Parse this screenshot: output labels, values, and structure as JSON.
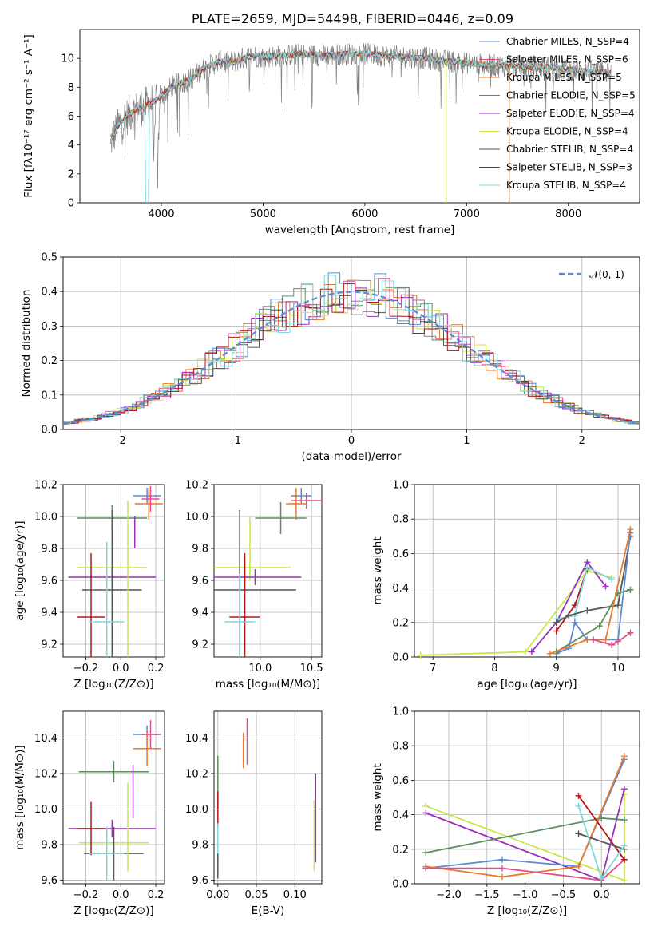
{
  "chart_data": [
    {
      "id": "spectrum",
      "type": "line",
      "title": "PLATE=2659, MJD=54498, FIBERID=0446, z=0.09",
      "xlabel": "wavelength [Angstrom, rest frame]",
      "ylabel": "Flux [fλ10⁻¹⁷ erg cm⁻² s⁻¹ A⁻¹]",
      "xlim": [
        3200,
        8700
      ],
      "ylim": [
        0,
        12
      ],
      "xticks": [
        4000,
        5000,
        6000,
        7000,
        8000
      ],
      "yticks": [
        0,
        2,
        4,
        6,
        8,
        10
      ],
      "legend": "right",
      "series": [
        {
          "name": "Chabrier MILES, N_SSP=4",
          "color": "#5b8bd6"
        },
        {
          "name": "Salpeter MILES, N_SSP=6",
          "color": "#e04e8c"
        },
        {
          "name": "Kroupa MILES, N_SSP=5",
          "color": "#e87a2a"
        },
        {
          "name": "Chabrier ELODIE, N_SSP=5",
          "color": "#5a8f60"
        },
        {
          "name": "Salpeter ELODIE, N_SSP=4",
          "color": "#9a2fb8"
        },
        {
          "name": "Kroupa ELODIE, N_SSP=4",
          "color": "#c9e64a"
        },
        {
          "name": "Chabrier STELIB, N_SSP=4",
          "color": "#555555"
        },
        {
          "name": "Salpeter STELIB, N_SSP=3",
          "color": "#b01818"
        },
        {
          "name": "Kroupa STELIB, N_SSP=4",
          "color": "#7ed8dc"
        }
      ],
      "continuum": {
        "x": [
          3500,
          3600,
          3700,
          3800,
          3900,
          4000,
          4100,
          4200,
          4300,
          4400,
          4500,
          4600,
          4700,
          4800,
          4900,
          5000,
          5200,
          5400,
          5600,
          5800,
          6000,
          6200,
          6400,
          6600,
          6800,
          7000,
          7200,
          7400,
          7600,
          7800,
          8000,
          8200,
          8400
        ],
        "y": [
          4.2,
          5.6,
          6.2,
          6.6,
          6.9,
          7.4,
          8.0,
          8.3,
          8.6,
          9.2,
          9.6,
          9.8,
          9.7,
          10.0,
          10.2,
          10.1,
          10.2,
          10.3,
          10.2,
          10.3,
          10.3,
          10.2,
          10.1,
          10.0,
          9.8,
          9.7,
          9.5,
          9.5,
          9.4,
          9.4,
          9.2,
          9.1,
          9.0
        ]
      }
    },
    {
      "id": "residuals",
      "type": "line",
      "xlabel": "(data-model)/error",
      "ylabel": "Normed distribution",
      "xlim": [
        -2.5,
        2.5
      ],
      "ylim": [
        0,
        0.5
      ],
      "xticks": [
        -2,
        -1,
        0,
        1,
        2
      ],
      "yticks": [
        0.0,
        0.1,
        0.2,
        0.3,
        0.4,
        0.5
      ],
      "reference_curve": {
        "name": "𝒩(0, 1)",
        "color": "#5b8bd6",
        "style": "dashed"
      },
      "legend": "top-right"
    },
    {
      "id": "age_vs_Z",
      "type": "scatter",
      "xlabel": "Z [log₁₀(Z/Z⊙)]",
      "ylabel": "age  [log₁₀(age/yr)]",
      "xlim": [
        -0.33,
        0.25
      ],
      "ylim": [
        9.12,
        10.2
      ],
      "xticks": [
        -0.2,
        0.0,
        0.2
      ],
      "yticks": [
        9.2,
        9.4,
        9.6,
        9.8,
        10.0,
        10.2
      ],
      "points": [
        {
          "x": 0.15,
          "y": 10.13,
          "xerr": 0.08,
          "yerr": 0.05,
          "color": "#5b8bd6"
        },
        {
          "x": 0.16,
          "y": 10.08,
          "xerr": 0.08,
          "yerr": 0.1,
          "color": "#e87a2a"
        },
        {
          "x": 0.17,
          "y": 10.11,
          "xerr": 0.05,
          "yerr": 0.08,
          "color": "#e04e8c"
        },
        {
          "x": -0.05,
          "y": 9.99,
          "xerr": 0.2,
          "yerr": 0.08,
          "color": "#5a8f60"
        },
        {
          "x": 0.08,
          "y": 9.9,
          "xerr": 0.0,
          "yerr": 0.1,
          "color": "#9a2fb8"
        },
        {
          "x": -0.05,
          "y": 9.68,
          "xerr": 0.2,
          "yerr": 0.05,
          "color": "#c9e64a"
        },
        {
          "x": -0.05,
          "y": 9.62,
          "xerr": 0.25,
          "yerr": 0.05,
          "color": "#9a2fb8"
        },
        {
          "x": -0.05,
          "y": 9.54,
          "xerr": 0.17,
          "yerr": 0.5,
          "color": "#555555"
        },
        {
          "x": -0.17,
          "y": 9.37,
          "xerr": 0.08,
          "yerr": 0.4,
          "color": "#b01818"
        },
        {
          "x": -0.08,
          "y": 9.34,
          "xerr": 0.1,
          "yerr": 0.5,
          "color": "#7ed8dc"
        },
        {
          "x": 0.04,
          "y": 9.5,
          "xerr": 0.0,
          "yerr": 0.6,
          "color": "#c9e64a"
        }
      ]
    },
    {
      "id": "age_vs_mass",
      "type": "scatter",
      "xlabel": "mass [log₁₀(M/M⊙)]",
      "ylabel": "",
      "xlim": [
        9.55,
        10.6
      ],
      "ylim": [
        9.12,
        10.2
      ],
      "xticks": [
        10.0,
        10.5
      ],
      "minor_xticks": [
        9.5,
        10.0,
        10.5
      ],
      "yticks": [
        9.2,
        9.4,
        9.6,
        9.8,
        10.0,
        10.2
      ],
      "points": [
        {
          "x": 10.4,
          "y": 10.13,
          "xerr": 0.1,
          "yerr": 0.05,
          "color": "#5b8bd6"
        },
        {
          "x": 10.35,
          "y": 10.08,
          "xerr": 0.1,
          "yerr": 0.1,
          "color": "#e87a2a"
        },
        {
          "x": 10.45,
          "y": 10.1,
          "xerr": 0.15,
          "yerr": 0.05,
          "color": "#e04e8c"
        },
        {
          "x": 10.2,
          "y": 9.99,
          "xerr": 0.25,
          "yerr": 0.1,
          "color": "#5a8f60"
        },
        {
          "x": 9.9,
          "y": 9.8,
          "xerr": 0.0,
          "yerr": 0.2,
          "color": "#c9e64a"
        },
        {
          "x": 9.9,
          "y": 9.68,
          "xerr": 0.4,
          "yerr": 0.05,
          "color": "#c9e64a"
        },
        {
          "x": 9.95,
          "y": 9.62,
          "xerr": 0.45,
          "yerr": 0.05,
          "color": "#9a2fb8"
        },
        {
          "x": 9.8,
          "y": 9.54,
          "xerr": 0.55,
          "yerr": 0.5,
          "color": "#555555"
        },
        {
          "x": 9.85,
          "y": 9.37,
          "xerr": 0.15,
          "yerr": 0.4,
          "color": "#b01818"
        },
        {
          "x": 9.8,
          "y": 9.34,
          "xerr": 0.15,
          "yerr": 0.3,
          "color": "#7ed8dc"
        }
      ]
    },
    {
      "id": "mass_weight_vs_age",
      "type": "line",
      "xlabel": "age  [log₁₀(age/yr)]",
      "ylabel": "mass weight",
      "xlim": [
        6.7,
        10.35
      ],
      "ylim": [
        0,
        1.0
      ],
      "xticks": [
        7,
        8,
        9,
        10
      ],
      "yticks": [
        0.0,
        0.2,
        0.4,
        0.6,
        0.8,
        1.0
      ],
      "series": [
        {
          "color": "#c9e64a",
          "x": [
            6.8,
            8.5,
            9.5,
            9.9
          ],
          "y": [
            0.01,
            0.03,
            0.5,
            0.46
          ]
        },
        {
          "color": "#9a2fb8",
          "x": [
            8.6,
            9.0,
            9.5,
            9.8
          ],
          "y": [
            0.03,
            0.2,
            0.55,
            0.41
          ]
        },
        {
          "color": "#b01818",
          "x": [
            9.0,
            9.3,
            9.5
          ],
          "y": [
            0.15,
            0.3,
            0.51
          ]
        },
        {
          "color": "#7ed8dc",
          "x": [
            9.0,
            9.3,
            9.5,
            9.9
          ],
          "y": [
            0.22,
            0.24,
            0.52,
            0.45
          ]
        },
        {
          "color": "#555555",
          "x": [
            9.0,
            9.2,
            9.5,
            10.0,
            10.2
          ],
          "y": [
            0.2,
            0.24,
            0.27,
            0.3,
            0.7
          ]
        },
        {
          "color": "#5b8bd6",
          "x": [
            9.0,
            9.2,
            9.3,
            9.5,
            10.0,
            10.2
          ],
          "y": [
            0.02,
            0.05,
            0.2,
            0.1,
            0.1,
            0.72
          ]
        },
        {
          "color": "#5a8f60",
          "x": [
            9.0,
            9.7,
            10.0,
            10.2
          ],
          "y": [
            0.03,
            0.18,
            0.37,
            0.39
          ]
        },
        {
          "color": "#e87a2a",
          "x": [
            8.9,
            9.5,
            9.8,
            10.2
          ],
          "y": [
            0.02,
            0.1,
            0.1,
            0.74
          ]
        },
        {
          "color": "#e04e8c",
          "x": [
            9.6,
            9.9,
            10.0,
            10.2
          ],
          "y": [
            0.1,
            0.07,
            0.09,
            0.14
          ]
        }
      ]
    },
    {
      "id": "mass_vs_Z",
      "type": "scatter",
      "xlabel": "Z [log₁₀(Z/Z⊙)]",
      "ylabel": "mass [log₁₀(M/M⊙)]",
      "xlim": [
        -0.33,
        0.25
      ],
      "ylim": [
        9.58,
        10.55
      ],
      "xticks": [
        -0.2,
        0.0,
        0.2
      ],
      "yticks": [
        9.6,
        9.8,
        10.0,
        10.2,
        10.4
      ],
      "points": [
        {
          "x": 0.15,
          "y": 10.42,
          "xerr": 0.08,
          "yerr": 0.05,
          "color": "#5b8bd6"
        },
        {
          "x": 0.15,
          "y": 10.34,
          "xerr": 0.08,
          "yerr": 0.1,
          "color": "#e87a2a"
        },
        {
          "x": 0.17,
          "y": 10.42,
          "xerr": 0.05,
          "yerr": 0.08,
          "color": "#e04e8c"
        },
        {
          "x": -0.04,
          "y": 10.21,
          "xerr": 0.2,
          "yerr": 0.06,
          "color": "#5a8f60"
        },
        {
          "x": 0.07,
          "y": 10.1,
          "xerr": 0.0,
          "yerr": 0.15,
          "color": "#9a2fb8"
        },
        {
          "x": -0.05,
          "y": 9.89,
          "xerr": 0.25,
          "yerr": 0.05,
          "color": "#9a2fb8"
        },
        {
          "x": -0.04,
          "y": 9.81,
          "xerr": 0.2,
          "yerr": 0.05,
          "color": "#c9e64a"
        },
        {
          "x": -0.04,
          "y": 9.75,
          "xerr": 0.17,
          "yerr": 0.15,
          "color": "#555555"
        },
        {
          "x": -0.17,
          "y": 9.89,
          "xerr": 0.08,
          "yerr": 0.15,
          "color": "#b01818"
        },
        {
          "x": -0.08,
          "y": 9.75,
          "xerr": 0.1,
          "yerr": 0.15,
          "color": "#7ed8dc"
        },
        {
          "x": 0.04,
          "y": 9.9,
          "xerr": 0.0,
          "yerr": 0.25,
          "color": "#c9e64a"
        }
      ]
    },
    {
      "id": "mass_vs_ebv",
      "type": "scatter",
      "xlabel": "E(B-V)",
      "ylabel": "",
      "xlim": [
        -0.005,
        0.135
      ],
      "ylim": [
        9.58,
        10.55
      ],
      "xticks": [
        0.0,
        0.05,
        0.1
      ],
      "yticks": [
        9.6,
        9.8,
        10.0,
        10.2,
        10.4
      ],
      "points": [
        {
          "x": 0.0,
          "y": 10.15,
          "xerr": 0.0,
          "yerr": 0.15,
          "color": "#5a8f60"
        },
        {
          "x": 0.0,
          "y": 10.0,
          "xerr": 0.0,
          "yerr": 0.1,
          "color": "#b01818"
        },
        {
          "x": 0.0,
          "y": 9.8,
          "xerr": 0.0,
          "yerr": 0.12,
          "color": "#7ed8dc"
        },
        {
          "x": 0.0,
          "y": 9.68,
          "xerr": 0.0,
          "yerr": 0.07,
          "color": "#555555"
        },
        {
          "x": 0.033,
          "y": 10.33,
          "xerr": 0.0,
          "yerr": 0.1,
          "color": "#e87a2a"
        },
        {
          "x": 0.038,
          "y": 10.38,
          "xerr": 0.0,
          "yerr": 0.13,
          "color": "#e04e8c"
        },
        {
          "x": 0.127,
          "y": 9.95,
          "xerr": 0.0,
          "yerr": 0.25,
          "color": "#9a2fb8"
        },
        {
          "x": 0.125,
          "y": 9.85,
          "xerr": 0.0,
          "yerr": 0.2,
          "color": "#c9e64a"
        }
      ]
    },
    {
      "id": "mass_weight_vs_Z",
      "type": "line",
      "xlabel": "Z [log₁₀(Z/Z⊙)]",
      "ylabel": "mass weight",
      "xlim": [
        -2.45,
        0.5
      ],
      "ylim": [
        0,
        1.0
      ],
      "xticks": [
        -2.0,
        -1.5,
        -1.0,
        -0.5,
        0.0
      ],
      "yticks": [
        0.0,
        0.2,
        0.4,
        0.6,
        0.8,
        1.0
      ],
      "series": [
        {
          "color": "#c9e64a",
          "x": [
            -2.3,
            0.3,
            0.3
          ],
          "y": [
            0.45,
            0.02,
            0.52
          ]
        },
        {
          "color": "#9a2fb8",
          "x": [
            -2.3,
            0.0,
            0.3
          ],
          "y": [
            0.41,
            0.02,
            0.55
          ]
        },
        {
          "color": "#5a8f60",
          "x": [
            -2.3,
            0.0,
            0.3
          ],
          "y": [
            0.18,
            0.38,
            0.37
          ]
        },
        {
          "color": "#5b8bd6",
          "x": [
            -2.3,
            -1.3,
            -0.3,
            0.3
          ],
          "y": [
            0.09,
            0.14,
            0.1,
            0.72
          ]
        },
        {
          "color": "#e87a2a",
          "x": [
            -2.3,
            -1.3,
            -0.3,
            0.3
          ],
          "y": [
            0.1,
            0.04,
            0.1,
            0.74
          ]
        },
        {
          "color": "#e04e8c",
          "x": [
            -2.3,
            -1.3,
            0.0,
            0.3
          ],
          "y": [
            0.09,
            0.09,
            0.02,
            0.14
          ]
        },
        {
          "color": "#b01818",
          "x": [
            -0.3,
            0.3
          ],
          "y": [
            0.51,
            0.14
          ]
        },
        {
          "color": "#555555",
          "x": [
            -0.3,
            0.3
          ],
          "y": [
            0.29,
            0.2
          ]
        },
        {
          "color": "#7ed8dc",
          "x": [
            -0.3,
            0.0,
            0.3
          ],
          "y": [
            0.45,
            0.03,
            0.22
          ]
        }
      ]
    }
  ]
}
